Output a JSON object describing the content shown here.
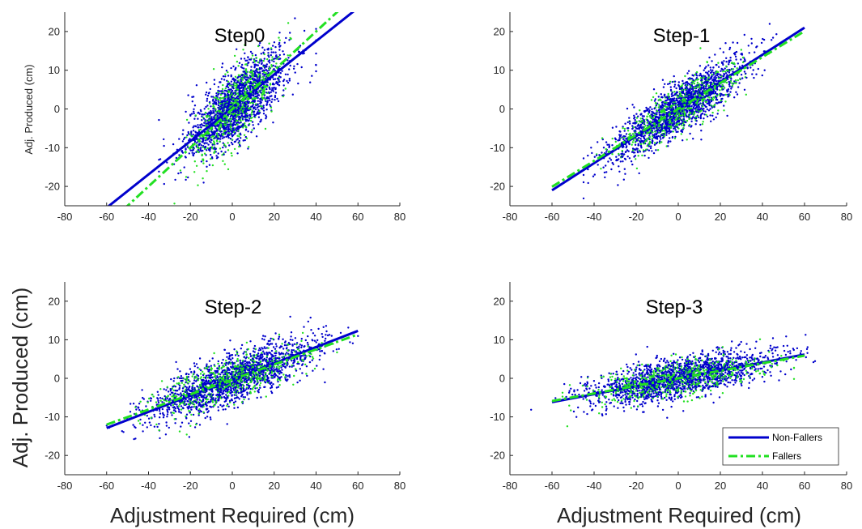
{
  "figure": {
    "xlabel": "Adjustment Required (cm)",
    "ylabel_small": "Adj. Produced (cm)",
    "ylabel_big": "Adj. Produced (cm)"
  },
  "legend": {
    "placement": "bottom-right of Step-3 panel",
    "entries": [
      {
        "label": "Non-Fallers",
        "color": "#0000CC",
        "style": "solid"
      },
      {
        "label": "Fallers",
        "color": "#22E022",
        "style": "dash-dot"
      }
    ]
  },
  "chart_data": [
    {
      "type": "scatter",
      "title": "Step0",
      "xlabel": "",
      "ylabel": "Adj. Produced (cm)",
      "xlim": [
        -80,
        80
      ],
      "ylim": [
        -25,
        25
      ],
      "xticks": [
        -80,
        -60,
        -40,
        -20,
        0,
        20,
        40,
        60,
        80
      ],
      "yticks": [
        -20,
        -10,
        0,
        10,
        20
      ],
      "grid": false,
      "series": [
        {
          "name": "Non-Fallers",
          "color": "#0000CC",
          "fit": {
            "slope": 0.43,
            "intercept": 0.3,
            "x_range": [
              -60,
              60
            ]
          },
          "scatter": {
            "x_center": 2,
            "x_sd": 12,
            "y_sd": 4.5,
            "x_min": -35,
            "x_max": 40
          }
        },
        {
          "name": "Fallers",
          "color": "#22E022",
          "fit": {
            "slope": 0.5,
            "intercept": 0.0,
            "x_range": [
              -52,
              52
            ]
          },
          "scatter": {
            "x_center": 2,
            "x_sd": 10,
            "y_sd": 4.5,
            "x_min": -30,
            "x_max": 35
          }
        }
      ]
    },
    {
      "type": "scatter",
      "title": "Step-1",
      "xlabel": "",
      "ylabel": "",
      "xlim": [
        -80,
        80
      ],
      "ylim": [
        -25,
        25
      ],
      "xticks": [
        -80,
        -60,
        -40,
        -20,
        0,
        20,
        40,
        60,
        80
      ],
      "yticks": [
        -20,
        -10,
        0,
        10,
        20
      ],
      "grid": false,
      "series": [
        {
          "name": "Non-Fallers",
          "color": "#0000CC",
          "fit": {
            "slope": 0.35,
            "intercept": 0.0,
            "x_range": [
              -60,
              60
            ]
          },
          "scatter": {
            "x_center": 0,
            "x_sd": 16,
            "y_sd": 3.2,
            "x_min": -45,
            "x_max": 60
          }
        },
        {
          "name": "Fallers",
          "color": "#22E022",
          "fit": {
            "slope": 0.335,
            "intercept": 0.0,
            "x_range": [
              -60,
              60
            ]
          },
          "scatter": {
            "x_center": 0,
            "x_sd": 14,
            "y_sd": 3.0,
            "x_min": -40,
            "x_max": 45
          }
        }
      ]
    },
    {
      "type": "scatter",
      "title": "Step-2",
      "xlabel": "Adjustment Required (cm)",
      "ylabel": "Adj. Produced (cm)",
      "xlim": [
        -80,
        80
      ],
      "ylim": [
        -25,
        25
      ],
      "xticks": [
        -80,
        -60,
        -40,
        -20,
        0,
        20,
        40,
        60,
        80
      ],
      "yticks": [
        -20,
        -10,
        0,
        10,
        20
      ],
      "grid": false,
      "series": [
        {
          "name": "Non-Fallers",
          "color": "#0000CC",
          "fit": {
            "slope": 0.21,
            "intercept": -0.3,
            "x_range": [
              -60,
              60
            ]
          },
          "scatter": {
            "x_center": 0,
            "x_sd": 20,
            "y_sd": 3.2,
            "x_min": -60,
            "x_max": 60
          }
        },
        {
          "name": "Fallers",
          "color": "#22E022",
          "fit": {
            "slope": 0.195,
            "intercept": -0.3,
            "x_range": [
              -60,
              60
            ]
          },
          "scatter": {
            "x_center": 0,
            "x_sd": 18,
            "y_sd": 3.0,
            "x_min": -50,
            "x_max": 50
          }
        }
      ]
    },
    {
      "type": "scatter",
      "title": "Step-3",
      "xlabel": "Adjustment Required (cm)",
      "ylabel": "",
      "xlim": [
        -80,
        80
      ],
      "ylim": [
        -25,
        25
      ],
      "xticks": [
        -80,
        -60,
        -40,
        -20,
        0,
        20,
        40,
        60,
        80
      ],
      "yticks": [
        -20,
        -10,
        0,
        10,
        20
      ],
      "grid": false,
      "legend": true,
      "series": [
        {
          "name": "Non-Fallers",
          "color": "#0000CC",
          "fit": {
            "slope": 0.103,
            "intercept": 0.0,
            "x_range": [
              -60,
              60
            ]
          },
          "scatter": {
            "x_center": 0,
            "x_sd": 22,
            "y_sd": 2.6,
            "x_min": -75,
            "x_max": 65
          }
        },
        {
          "name": "Fallers",
          "color": "#22E022",
          "fit": {
            "slope": 0.098,
            "intercept": 0.0,
            "x_range": [
              -60,
              60
            ]
          },
          "scatter": {
            "x_center": 0,
            "x_sd": 20,
            "y_sd": 2.4,
            "x_min": -55,
            "x_max": 55
          }
        }
      ]
    }
  ]
}
